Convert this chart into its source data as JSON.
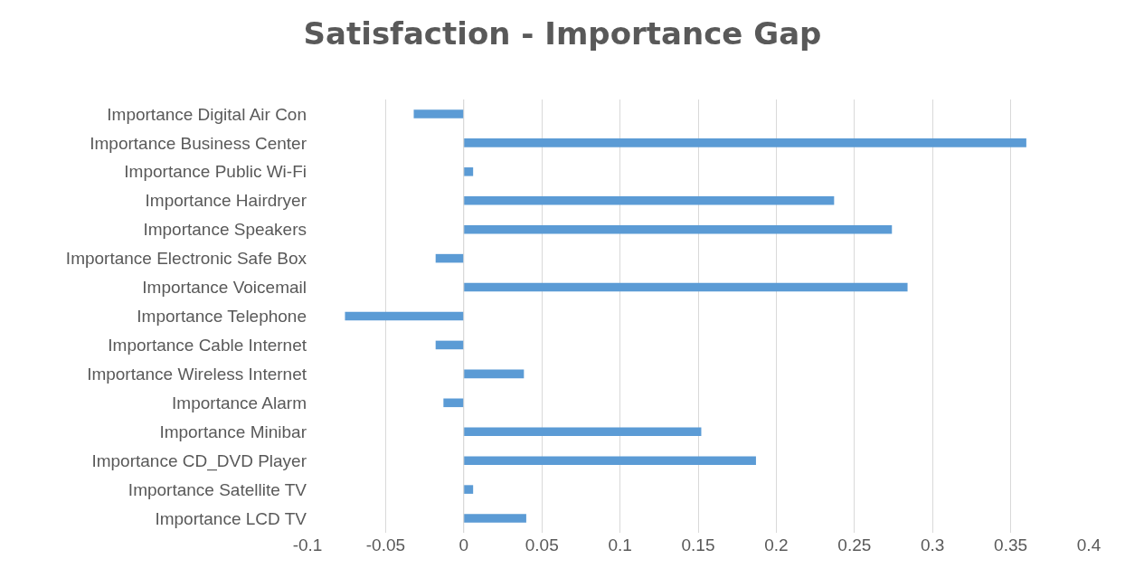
{
  "chart_data": {
    "type": "bar",
    "orientation": "horizontal",
    "title": "Satisfaction - Importance Gap",
    "categories": [
      "Importance Digital Air Con",
      "Importance Business Center",
      "Importance Public Wi-Fi",
      "Importance Hairdryer",
      "Importance Speakers",
      "Importance Electronic Safe Box",
      "Importance Voicemail",
      "Importance Telephone",
      "Importance Cable Internet",
      "Importance Wireless Internet",
      "Importance Alarm",
      "Importance Minibar",
      "Importance CD_DVD Player",
      "Importance Satellite TV",
      "Importance LCD TV"
    ],
    "values": [
      -0.032,
      0.36,
      0.006,
      0.237,
      0.274,
      -0.018,
      0.284,
      -0.076,
      -0.018,
      0.0385,
      -0.013,
      0.152,
      0.187,
      0.006,
      0.04
    ],
    "color": "#5b9bd5",
    "xlim": [
      -0.1,
      0.4
    ],
    "xticks": [
      -0.1,
      -0.05,
      0,
      0.05,
      0.1,
      0.15,
      0.2,
      0.25,
      0.3,
      0.35,
      0.4
    ],
    "grid": "x"
  }
}
